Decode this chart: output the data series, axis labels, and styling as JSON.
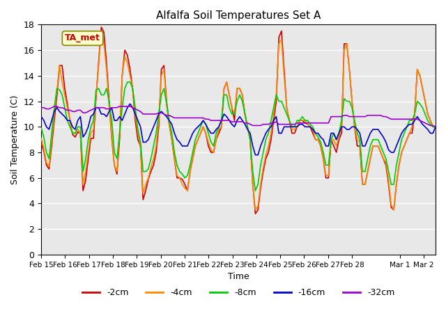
{
  "title": "Alfalfa Soil Temperatures Set A",
  "xlabel": "Time",
  "ylabel": "Soil Temperature (C)",
  "annotation": "TA_met",
  "ylim": [
    0,
    18
  ],
  "yticks": [
    0,
    2,
    4,
    6,
    8,
    10,
    12,
    14,
    16,
    18
  ],
  "background_color": "#ffffff",
  "plot_bg_color": "#e8e8e8",
  "colors": {
    "-2cm": "#cc0000",
    "-4cm": "#ff8800",
    "-8cm": "#00cc00",
    "-16cm": "#0000cc",
    "-32cm": "#9900cc"
  },
  "legend_labels": [
    "-2cm",
    "-4cm",
    "-8cm",
    "-16cm",
    "-32cm"
  ],
  "series": {
    "-2cm": [
      8.7,
      8.1,
      7.0,
      6.7,
      8.5,
      10.5,
      12.4,
      14.8,
      14.8,
      13.0,
      11.8,
      10.5,
      9.4,
      9.2,
      9.6,
      9.5,
      5.0,
      5.8,
      7.5,
      9.1,
      9.1,
      12.3,
      15.1,
      17.8,
      17.4,
      15.0,
      12.0,
      9.1,
      7.0,
      6.3,
      9.0,
      14.0,
      16.0,
      15.6,
      14.5,
      13.0,
      10.5,
      9.0,
      8.5,
      4.3,
      5.0,
      5.9,
      6.5,
      7.0,
      8.0,
      10.0,
      14.5,
      14.8,
      12.0,
      10.2,
      9.0,
      7.5,
      6.0,
      6.0,
      5.9,
      5.5,
      5.0,
      6.5,
      7.5,
      8.5,
      9.0,
      9.5,
      10.0,
      9.5,
      8.5,
      8.0,
      8.0,
      9.0,
      9.5,
      10.0,
      13.0,
      13.5,
      12.5,
      11.5,
      10.5,
      13.0,
      13.0,
      12.5,
      11.0,
      10.0,
      9.0,
      5.5,
      3.2,
      3.5,
      5.2,
      6.5,
      7.5,
      8.0,
      9.0,
      10.5,
      12.0,
      17.0,
      17.5,
      14.5,
      11.5,
      10.5,
      9.5,
      9.5,
      10.0,
      10.5,
      10.5,
      10.3,
      10.2,
      10.0,
      9.5,
      9.0,
      9.0,
      8.5,
      7.5,
      6.0,
      6.0,
      9.0,
      8.5,
      8.0,
      9.0,
      9.5,
      16.5,
      16.5,
      14.5,
      12.0,
      10.0,
      8.5,
      8.5,
      5.5,
      5.5,
      6.5,
      7.5,
      8.5,
      8.5,
      8.5,
      8.0,
      7.5,
      7.0,
      5.5,
      3.7,
      3.5,
      5.5,
      7.0,
      8.0,
      8.5,
      9.0,
      9.5,
      9.5,
      11.0,
      14.5,
      14.0,
      13.0,
      12.0,
      11.0,
      10.5,
      10.0,
      10.0
    ],
    "-4cm": [
      9.1,
      8.3,
      7.2,
      6.9,
      8.9,
      11.0,
      12.8,
      14.8,
      13.5,
      12.5,
      11.5,
      10.5,
      9.5,
      9.5,
      9.8,
      9.5,
      5.5,
      6.5,
      8.0,
      9.5,
      9.8,
      12.5,
      14.8,
      17.5,
      16.5,
      14.5,
      11.5,
      9.2,
      7.0,
      6.5,
      9.5,
      14.0,
      15.5,
      15.0,
      14.0,
      13.0,
      11.0,
      9.5,
      8.5,
      4.8,
      5.5,
      6.0,
      6.8,
      7.5,
      8.5,
      10.5,
      14.0,
      14.5,
      11.8,
      10.2,
      9.0,
      7.5,
      6.2,
      6.0,
      5.5,
      5.2,
      5.0,
      6.5,
      7.5,
      8.5,
      9.0,
      9.5,
      10.0,
      9.5,
      8.8,
      8.2,
      8.0,
      9.0,
      9.8,
      10.0,
      13.0,
      13.5,
      12.5,
      11.5,
      11.0,
      13.0,
      13.0,
      12.5,
      11.0,
      10.0,
      9.0,
      5.5,
      3.5,
      3.8,
      5.5,
      6.8,
      7.8,
      8.5,
      9.5,
      11.0,
      12.5,
      16.5,
      16.8,
      14.0,
      11.5,
      10.5,
      9.8,
      9.8,
      10.0,
      10.5,
      10.5,
      10.5,
      10.2,
      10.0,
      9.8,
      9.0,
      9.0,
      8.5,
      7.5,
      6.2,
      6.2,
      9.0,
      9.0,
      8.5,
      9.2,
      10.0,
      16.0,
      16.5,
      14.5,
      12.0,
      10.0,
      9.0,
      8.8,
      5.5,
      5.5,
      6.5,
      7.5,
      8.5,
      8.5,
      8.5,
      8.0,
      7.5,
      7.2,
      5.8,
      3.9,
      3.5,
      5.5,
      7.0,
      8.0,
      8.5,
      9.0,
      9.5,
      10.0,
      11.0,
      14.5,
      14.0,
      13.0,
      12.0,
      11.0,
      10.5,
      10.0,
      10.0
    ],
    "-8cm": [
      9.9,
      9.2,
      8.0,
      7.5,
      9.5,
      11.5,
      13.0,
      12.9,
      12.5,
      11.5,
      10.5,
      10.0,
      9.5,
      9.5,
      10.0,
      10.0,
      6.5,
      7.5,
      9.0,
      10.0,
      10.5,
      12.9,
      13.0,
      12.5,
      12.5,
      13.0,
      12.0,
      10.5,
      8.0,
      7.5,
      9.5,
      11.5,
      13.0,
      13.5,
      13.5,
      13.0,
      11.5,
      9.8,
      8.8,
      6.5,
      6.5,
      6.7,
      7.5,
      8.5,
      9.5,
      11.0,
      12.5,
      13.0,
      11.8,
      10.5,
      9.5,
      8.0,
      7.0,
      6.5,
      6.3,
      6.0,
      6.2,
      7.0,
      8.0,
      9.0,
      9.5,
      10.0,
      10.5,
      10.2,
      9.5,
      8.8,
      8.5,
      9.5,
      10.0,
      10.5,
      12.5,
      12.5,
      11.5,
      11.0,
      11.0,
      12.0,
      12.5,
      12.0,
      11.0,
      10.0,
      9.0,
      6.5,
      5.0,
      5.5,
      7.0,
      8.0,
      9.0,
      9.5,
      10.5,
      11.5,
      12.5,
      12.0,
      12.0,
      11.5,
      11.0,
      10.5,
      10.0,
      10.0,
      10.5,
      10.5,
      10.8,
      10.5,
      10.5,
      10.2,
      10.0,
      9.5,
      9.2,
      8.8,
      8.0,
      7.0,
      7.0,
      9.0,
      9.5,
      9.0,
      9.5,
      10.5,
      12.2,
      12.0,
      12.0,
      11.5,
      10.5,
      9.5,
      9.0,
      6.5,
      6.5,
      7.5,
      8.5,
      9.0,
      9.0,
      9.0,
      8.5,
      8.0,
      7.5,
      6.5,
      5.5,
      5.5,
      7.0,
      8.0,
      9.0,
      9.5,
      10.0,
      10.5,
      10.5,
      11.0,
      12.0,
      11.8,
      11.5,
      11.0,
      10.5,
      10.2,
      10.0,
      10.0
    ],
    "-16cm": [
      10.8,
      10.5,
      10.0,
      9.8,
      10.5,
      11.2,
      11.5,
      11.2,
      11.0,
      10.8,
      10.5,
      10.5,
      10.0,
      9.8,
      10.5,
      10.8,
      9.2,
      9.5,
      10.0,
      10.8,
      11.0,
      11.5,
      11.5,
      11.0,
      11.0,
      10.8,
      11.2,
      11.5,
      10.5,
      10.5,
      10.8,
      10.5,
      11.0,
      11.5,
      11.8,
      11.5,
      11.0,
      10.5,
      10.0,
      8.8,
      8.8,
      9.0,
      9.5,
      10.0,
      10.5,
      11.0,
      11.2,
      11.0,
      10.8,
      10.5,
      10.2,
      9.5,
      9.0,
      8.8,
      8.5,
      8.5,
      8.5,
      9.0,
      9.5,
      9.8,
      10.0,
      10.2,
      10.5,
      10.2,
      9.8,
      9.5,
      9.5,
      9.8,
      10.0,
      10.5,
      11.0,
      10.8,
      10.5,
      10.2,
      10.0,
      10.5,
      10.8,
      10.5,
      10.2,
      9.8,
      9.5,
      8.5,
      7.8,
      7.8,
      8.5,
      9.0,
      9.5,
      9.8,
      10.0,
      10.5,
      10.8,
      9.5,
      9.5,
      10.0,
      10.0,
      10.0,
      10.0,
      10.0,
      10.0,
      10.2,
      10.2,
      10.0,
      10.0,
      10.0,
      9.8,
      9.5,
      9.5,
      9.2,
      9.0,
      8.5,
      8.5,
      9.5,
      9.5,
      9.0,
      9.5,
      10.0,
      10.0,
      9.8,
      9.8,
      10.0,
      10.0,
      9.8,
      9.5,
      8.5,
      8.5,
      9.0,
      9.5,
      9.8,
      9.8,
      9.8,
      9.5,
      9.2,
      8.8,
      8.2,
      8.0,
      8.0,
      8.5,
      9.0,
      9.5,
      9.8,
      10.0,
      10.2,
      10.2,
      10.5,
      10.8,
      10.5,
      10.2,
      10.0,
      9.8,
      9.5,
      9.5,
      10.0
    ],
    "-32cm": [
      11.5,
      11.5,
      11.4,
      11.4,
      11.5,
      11.6,
      11.6,
      11.5,
      11.5,
      11.4,
      11.3,
      11.3,
      11.2,
      11.2,
      11.3,
      11.3,
      11.1,
      11.1,
      11.2,
      11.3,
      11.4,
      11.5,
      11.5,
      11.5,
      11.5,
      11.4,
      11.4,
      11.5,
      11.5,
      11.5,
      11.6,
      11.6,
      11.6,
      11.6,
      11.6,
      11.5,
      11.4,
      11.3,
      11.2,
      11.0,
      11.0,
      11.0,
      11.0,
      11.0,
      11.0,
      11.1,
      11.1,
      11.0,
      10.9,
      10.9,
      10.8,
      10.7,
      10.7,
      10.7,
      10.7,
      10.7,
      10.7,
      10.7,
      10.7,
      10.7,
      10.7,
      10.7,
      10.7,
      10.6,
      10.6,
      10.5,
      10.5,
      10.5,
      10.5,
      10.5,
      10.5,
      10.5,
      10.5,
      10.4,
      10.4,
      10.4,
      10.4,
      10.4,
      10.3,
      10.3,
      10.2,
      10.1,
      10.1,
      10.1,
      10.1,
      10.2,
      10.2,
      10.2,
      10.3,
      10.3,
      10.4,
      10.2,
      10.2,
      10.2,
      10.2,
      10.2,
      10.2,
      10.2,
      10.3,
      10.3,
      10.3,
      10.3,
      10.3,
      10.3,
      10.3,
      10.3,
      10.3,
      10.3,
      10.3,
      10.3,
      10.3,
      10.8,
      10.8,
      10.8,
      10.8,
      10.8,
      10.9,
      10.9,
      10.8,
      10.8,
      10.8,
      10.8,
      10.8,
      10.8,
      10.8,
      10.9,
      10.9,
      10.9,
      10.9,
      10.9,
      10.9,
      10.8,
      10.8,
      10.7,
      10.6,
      10.6,
      10.6,
      10.6,
      10.6,
      10.6,
      10.6,
      10.6,
      10.6,
      10.6,
      10.6,
      10.5,
      10.4,
      10.3,
      10.2,
      10.1,
      10.1,
      10.0
    ]
  }
}
